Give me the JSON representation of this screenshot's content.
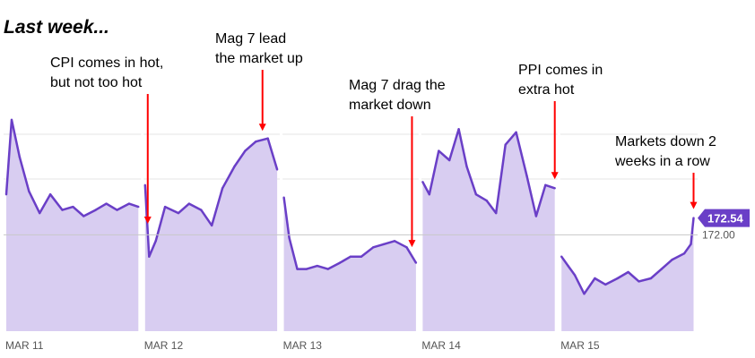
{
  "title": "Last week...",
  "colors": {
    "line": "#6a3fc7",
    "area": "#d8cdf1",
    "arrow": "#ff0000",
    "grid": "#e6e6e6",
    "ref": "#c8c8c8",
    "badge": "#6a3fc7"
  },
  "annotations": [
    {
      "lines": [
        "CPI comes in hot,",
        "but not too hot"
      ],
      "x": 1.02
    },
    {
      "lines": [
        "Mag 7 lead",
        "the market up"
      ],
      "x": 1.88
    },
    {
      "lines": [
        "Mag 7 drag the",
        "market down"
      ],
      "x": 2.96
    },
    {
      "lines": [
        "PPI comes in",
        "extra hot"
      ],
      "x": 3.99
    },
    {
      "lines": [
        "Markets down 2",
        "weeks in a row"
      ],
      "x": 4.99
    }
  ],
  "chart_data": {
    "type": "area",
    "x_ticks": [
      "MAR 11",
      "MAR 12",
      "MAR 13",
      "MAR 14",
      "MAR 15"
    ],
    "ylim": [
      168.9,
      176.1
    ],
    "reference_value": "172.00",
    "last_price": "172.54",
    "grid": true,
    "series": [
      {
        "segment": "MAR 11",
        "x": [
          0.0,
          0.04,
          0.1,
          0.17,
          0.25,
          0.33,
          0.42,
          0.5,
          0.58,
          0.67,
          0.75,
          0.83,
          0.92,
          0.99
        ],
        "y": [
          173.3,
          175.7,
          174.5,
          173.4,
          172.7,
          173.3,
          172.8,
          172.9,
          172.6,
          172.8,
          173.0,
          172.8,
          173.0,
          172.9
        ]
      },
      {
        "segment": "MAR 12",
        "x": [
          0.0,
          0.03,
          0.08,
          0.15,
          0.25,
          0.33,
          0.42,
          0.5,
          0.58,
          0.67,
          0.75,
          0.83,
          0.92,
          0.99
        ],
        "y": [
          173.6,
          171.3,
          171.8,
          172.9,
          172.7,
          173.0,
          172.8,
          172.3,
          173.5,
          174.2,
          174.7,
          175.0,
          175.1,
          174.1
        ]
      },
      {
        "segment": "MAR 13",
        "x": [
          0.0,
          0.04,
          0.1,
          0.17,
          0.25,
          0.33,
          0.42,
          0.5,
          0.58,
          0.67,
          0.75,
          0.83,
          0.92,
          0.99
        ],
        "y": [
          173.2,
          171.9,
          170.9,
          170.9,
          171.0,
          170.9,
          171.1,
          171.3,
          171.3,
          171.6,
          171.7,
          171.8,
          171.6,
          171.1
        ]
      },
      {
        "segment": "MAR 14",
        "x": [
          0.0,
          0.05,
          0.12,
          0.2,
          0.27,
          0.33,
          0.4,
          0.48,
          0.55,
          0.62,
          0.7,
          0.78,
          0.85,
          0.92,
          0.99
        ],
        "y": [
          173.7,
          173.3,
          174.7,
          174.4,
          175.4,
          174.2,
          173.3,
          173.1,
          172.7,
          174.9,
          175.3,
          173.9,
          172.6,
          173.6,
          173.5
        ]
      },
      {
        "segment": "MAR 15",
        "x": [
          0.0,
          0.05,
          0.1,
          0.17,
          0.25,
          0.33,
          0.42,
          0.5,
          0.58,
          0.67,
          0.75,
          0.83,
          0.92,
          0.97,
          0.99
        ],
        "y": [
          171.3,
          171.0,
          170.7,
          170.1,
          170.6,
          170.4,
          170.6,
          170.8,
          170.5,
          170.6,
          170.9,
          171.2,
          171.4,
          171.7,
          172.54
        ]
      }
    ]
  }
}
